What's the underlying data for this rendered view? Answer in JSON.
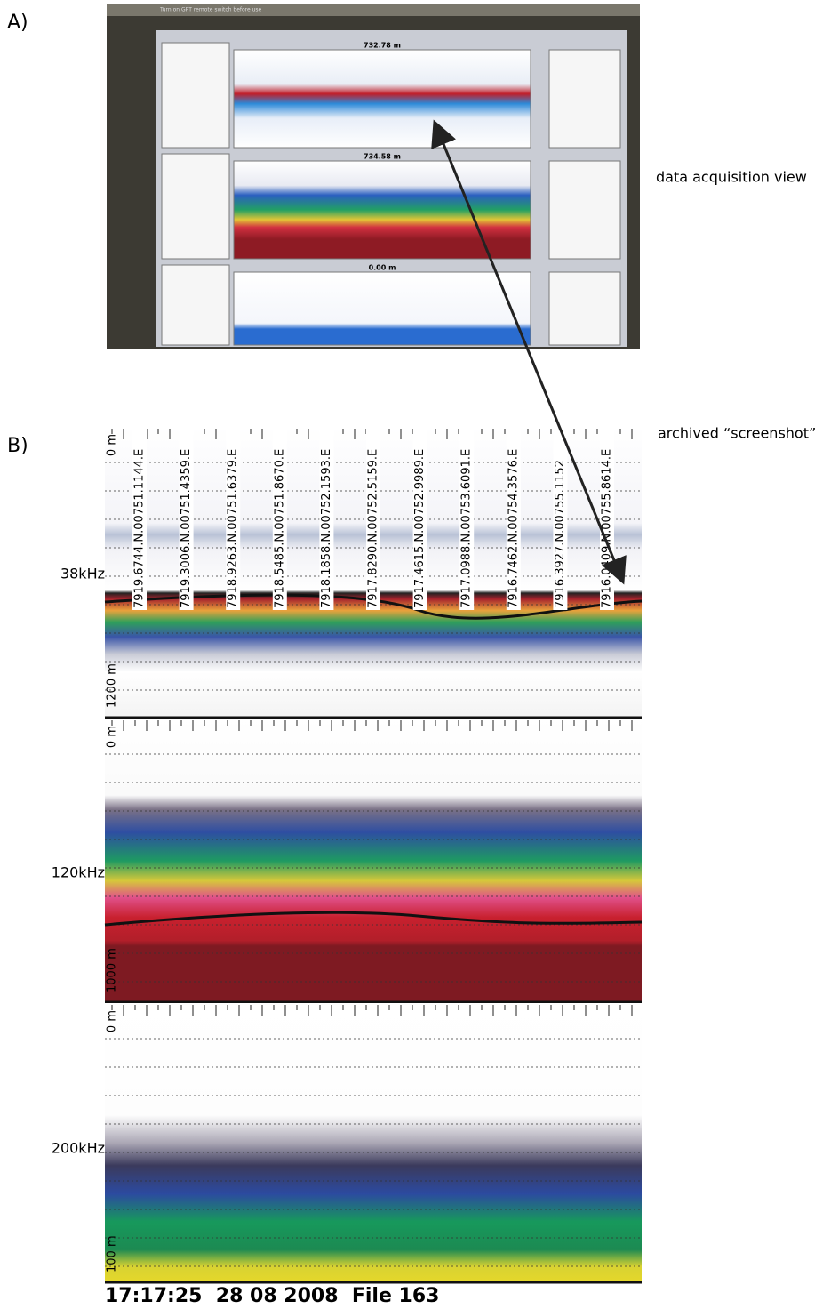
{
  "labels": {
    "panel_a": "A)",
    "panel_b": "B)",
    "acquisition": "data acquisition view",
    "archived": "archived “screenshot”"
  },
  "screen": {
    "notice": "Turn on GPT remote switch before use",
    "ranges": [
      "732.78 m",
      "734.58 m",
      "0.00 m"
    ]
  },
  "echogram": {
    "channels": [
      {
        "frequency": "38kHz",
        "top_depth": "0 m",
        "bottom_depth": "1200 m"
      },
      {
        "frequency": "120kHz",
        "top_depth": "0 m",
        "bottom_depth": "1000 m"
      },
      {
        "frequency": "200kHz",
        "top_depth": "0 m",
        "bottom_depth": "100 m"
      }
    ],
    "positions": [
      "7919.6744.N.00751.1144.E",
      "7919.3006.N.00751.4359.E",
      "7918.9263.N.00751.6379.E",
      "7918.5485.N.00751.8670.E",
      "7918.1858.N.00752.1593.E",
      "7917.8290.N.00752.5159.E",
      "7917.4615.N.00752.9989.E",
      "7917.0988.N.00753.6091.E",
      "7916.7462.N.00754.3576.E",
      "7916.3927.N.00755.1152",
      "7916.0409.N.00755.8614.E"
    ],
    "footer": "17:17:25  28 08 2008  File 163"
  }
}
